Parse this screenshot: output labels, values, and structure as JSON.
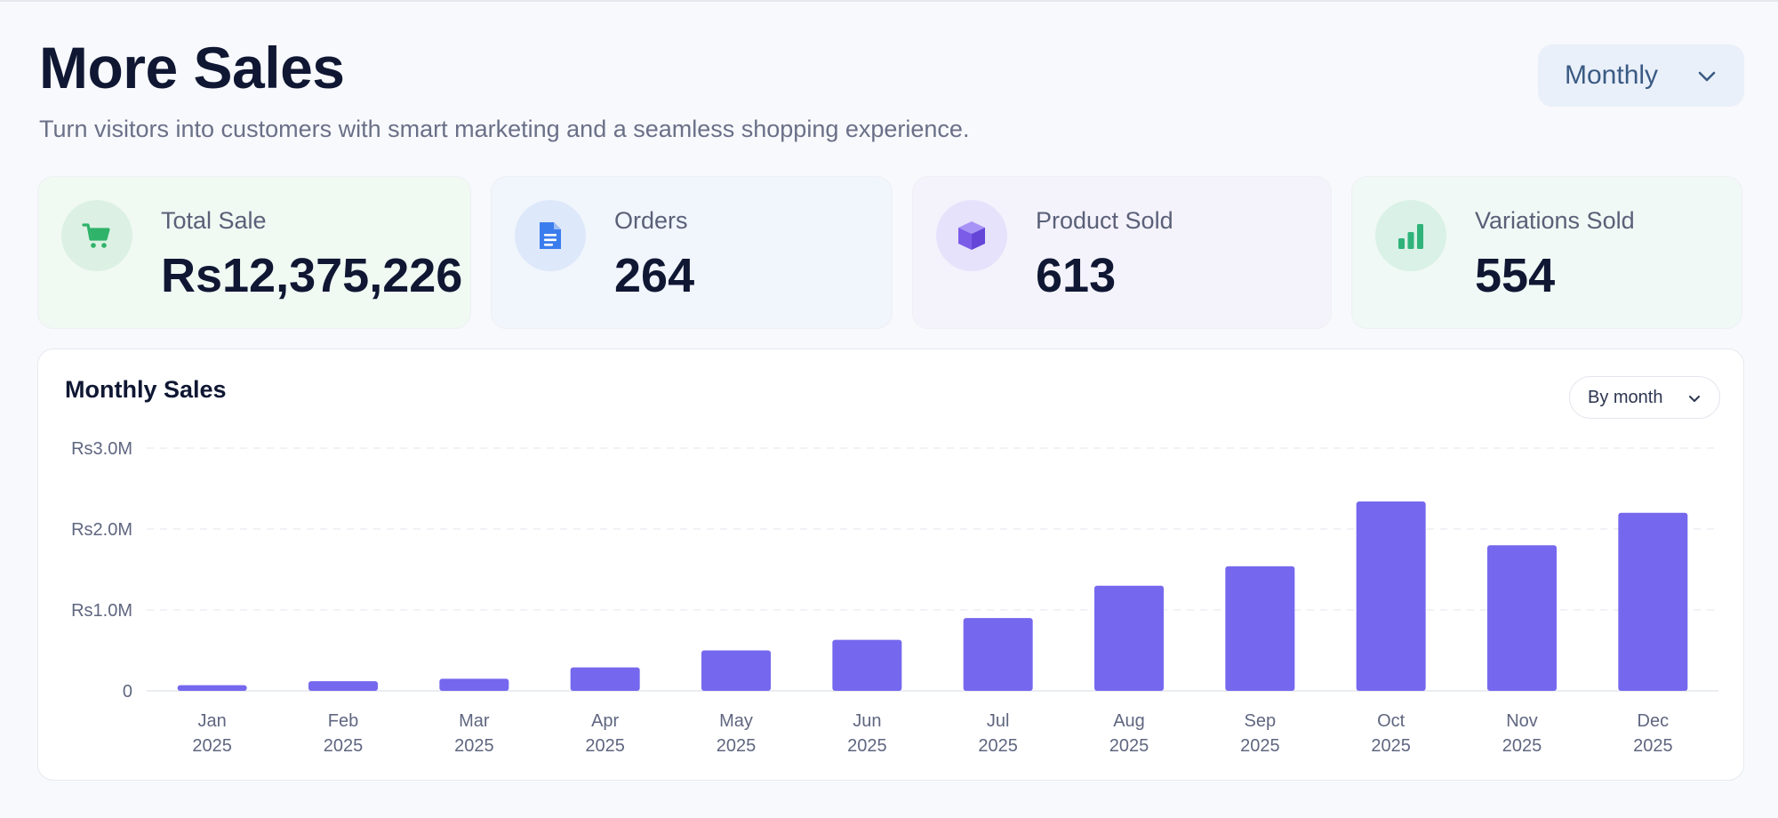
{
  "header": {
    "title": "More Sales",
    "subtitle": "Turn visitors into customers with smart marketing and a seamless shopping experience.",
    "period_select": "Monthly"
  },
  "stats": [
    {
      "label": "Total Sale",
      "value": "Rs12,375,226",
      "icon": "shopping-cart-icon",
      "color": "#2fb36a"
    },
    {
      "label": "Orders",
      "value": "264",
      "icon": "document-icon",
      "color": "#3b7ded"
    },
    {
      "label": "Product Sold",
      "value": "613",
      "icon": "cube-icon",
      "color": "#7b5ce9"
    },
    {
      "label": "Variations Sold",
      "value": "554",
      "icon": "bar-chart-icon",
      "color": "#2fb37a"
    }
  ],
  "chart_panel": {
    "title": "Monthly Sales",
    "select_label": "By month"
  },
  "chart_data": {
    "type": "bar",
    "title": "Monthly Sales",
    "categories": [
      "Jan 2025",
      "Feb 2025",
      "Mar 2025",
      "Apr 2025",
      "May 2025",
      "Jun 2025",
      "Jul 2025",
      "Aug 2025",
      "Sep 2025",
      "Oct 2025",
      "Nov 2025",
      "Dec 2025"
    ],
    "values": [
      70000,
      120000,
      150000,
      290000,
      500000,
      630000,
      900000,
      1300000,
      1540000,
      2340000,
      1800000,
      2200000
    ],
    "yticks": [
      0,
      1000000,
      2000000,
      3000000
    ],
    "ytick_labels": [
      "0",
      "Rs1.0M",
      "Rs2.0M",
      "Rs3.0M"
    ],
    "ylim": [
      0,
      3000000
    ],
    "bar_color": "#7568ee",
    "grid": true
  }
}
